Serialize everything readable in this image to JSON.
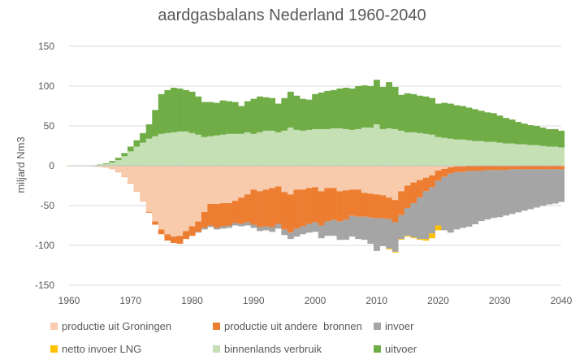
{
  "chart_data": {
    "type": "bar",
    "stacked": true,
    "title": "aardgasbalans Nederland 1960-2040",
    "xlabel": "",
    "ylabel": "miljard Nm3",
    "ylim": [
      -150,
      150
    ],
    "yticks": [
      150,
      100,
      50,
      0,
      -50,
      -100,
      -150
    ],
    "xlim": [
      1960,
      2040
    ],
    "xticks": [
      1960,
      1970,
      1980,
      1990,
      2000,
      2010,
      2020,
      2030,
      2040
    ],
    "legend_position": "bottom",
    "x": [
      1960,
      1961,
      1962,
      1963,
      1964,
      1965,
      1966,
      1967,
      1968,
      1969,
      1970,
      1971,
      1972,
      1973,
      1974,
      1975,
      1976,
      1977,
      1978,
      1979,
      1980,
      1981,
      1982,
      1983,
      1984,
      1985,
      1986,
      1987,
      1988,
      1989,
      1990,
      1991,
      1992,
      1993,
      1994,
      1995,
      1996,
      1997,
      1998,
      1999,
      2000,
      2001,
      2002,
      2003,
      2004,
      2005,
      2006,
      2007,
      2008,
      2009,
      2010,
      2011,
      2012,
      2013,
      2014,
      2015,
      2016,
      2017,
      2018,
      2019,
      2020,
      2021,
      2022,
      2023,
      2024,
      2025,
      2026,
      2027,
      2028,
      2029,
      2030,
      2031,
      2032,
      2033,
      2034,
      2035,
      2036,
      2037,
      2038,
      2039,
      2040
    ],
    "series": [
      {
        "name": "productie uit Groningen",
        "color": "#f8cbad",
        "stack": "neg",
        "values": [
          -0.3,
          -0.3,
          -0.3,
          -0.3,
          -0.5,
          -1,
          -2,
          -4,
          -8,
          -14,
          -22,
          -32,
          -44,
          -58,
          -70,
          -80,
          -86,
          -89,
          -88,
          -82,
          -76,
          -70,
          -58,
          -48,
          -48,
          -47,
          -47,
          -44,
          -40,
          -36,
          -30,
          -32,
          -30,
          -28,
          -26,
          -33,
          -36,
          -30,
          -30,
          -28,
          -27,
          -32,
          -28,
          -28,
          -32,
          -31,
          -30,
          -30,
          -34,
          -35,
          -36,
          -37,
          -40,
          -43,
          -32,
          -25,
          -21,
          -18,
          -15,
          -12,
          -6,
          -4,
          -2,
          -1,
          -1,
          -0.5,
          -0.5,
          -0.5,
          -0.5,
          -0.5,
          -0.5,
          -0.5,
          -0.5,
          -0.5,
          -0.5,
          -0.5,
          -0.5,
          -0.5,
          -0.5,
          -0.5,
          -0.5
        ]
      },
      {
        "name": "productie uit andere  bronnen",
        "color": "#ed7d31",
        "stack": "neg",
        "values": [
          -0.2,
          -0.2,
          -0.2,
          -0.2,
          -0.2,
          -0.2,
          -0.2,
          -0.3,
          -0.3,
          -0.3,
          -0.4,
          -0.4,
          -0.5,
          -1,
          -4,
          -6,
          -8,
          -8,
          -10,
          -10,
          -12,
          -13,
          -20,
          -27,
          -30,
          -29,
          -28,
          -28,
          -33,
          -35,
          -44,
          -45,
          -46,
          -49,
          -47,
          -47,
          -48,
          -49,
          -46,
          -45,
          -44,
          -43,
          -42,
          -40,
          -38,
          -37,
          -33,
          -34,
          -30,
          -30,
          -30,
          -29,
          -27,
          -28,
          -30,
          -28,
          -26,
          -22,
          -17,
          -15,
          -13,
          -10,
          -8,
          -7,
          -7,
          -6,
          -6,
          -6,
          -5,
          -5,
          -5,
          -5,
          -4,
          -4,
          -4,
          -4,
          -4,
          -4,
          -4,
          -4,
          -4
        ]
      },
      {
        "name": "invoer",
        "color": "#a5a5a5",
        "stack": "neg",
        "values": [
          0,
          0,
          0,
          0,
          0,
          0,
          0,
          0,
          0,
          0,
          0,
          0,
          0,
          0,
          0,
          0,
          0,
          0,
          0,
          0,
          0,
          -1,
          -2,
          -2,
          -2,
          -3,
          -3,
          -3,
          -3,
          -4,
          -4,
          -5,
          -5,
          -6,
          -6,
          -7,
          -8,
          -10,
          -10,
          -11,
          -12,
          -16,
          -18,
          -20,
          -23,
          -25,
          -26,
          -28,
          -29,
          -33,
          -41,
          -35,
          -37,
          -37,
          -30,
          -35,
          -43,
          -52,
          -60,
          -58,
          -56,
          -67,
          -74,
          -72,
          -70,
          -70,
          -67,
          -63,
          -62,
          -60,
          -59,
          -57,
          -56,
          -54,
          -52,
          -50,
          -48,
          -46,
          -44,
          -43,
          -41
        ]
      },
      {
        "name": "netto invoer LNG",
        "color": "#ffc000",
        "stack": "neg",
        "values": [
          0,
          0,
          0,
          0,
          0,
          0,
          0,
          0,
          0,
          0,
          0,
          0,
          0,
          0,
          0,
          0,
          0,
          0,
          0,
          0,
          0,
          0,
          0,
          0,
          0,
          0,
          0,
          0,
          0,
          0,
          0,
          0,
          0,
          0,
          0,
          0,
          0,
          0,
          0,
          0,
          0,
          0,
          0,
          0,
          0,
          0,
          0,
          0,
          0,
          0,
          0,
          0,
          -1,
          -1,
          -1,
          -1,
          -1,
          -1,
          -2,
          -6,
          -6,
          0,
          0,
          0,
          0,
          0,
          0,
          0,
          0,
          0,
          0,
          0,
          0,
          0,
          0,
          0,
          0,
          0,
          0,
          0,
          0
        ]
      },
      {
        "name": "binnenlands verbruik",
        "color": "#c5e0b4",
        "stack": "pos",
        "values": [
          0.5,
          0.5,
          0.5,
          0.5,
          0.5,
          1,
          2,
          4,
          7,
          12,
          18,
          24,
          29,
          34,
          37,
          40,
          41,
          42,
          43,
          43,
          41,
          39,
          36,
          37,
          38,
          39,
          40,
          40,
          40,
          42,
          40,
          42,
          44,
          44,
          42,
          44,
          48,
          45,
          44,
          45,
          46,
          46,
          46,
          47,
          47,
          46,
          45,
          46,
          48,
          48,
          52,
          46,
          47,
          46,
          44,
          42,
          42,
          41,
          40,
          39,
          36,
          35,
          34,
          33,
          33,
          32,
          31,
          31,
          30,
          30,
          29,
          28,
          28,
          27,
          27,
          26,
          26,
          25,
          24,
          24,
          23
        ]
      },
      {
        "name": "uitvoer",
        "color": "#70ad47",
        "stack": "pos",
        "values": [
          0,
          0,
          0,
          0,
          0,
          0.5,
          1,
          2,
          3,
          4,
          6,
          8,
          12,
          18,
          33,
          50,
          54,
          56,
          54,
          52,
          52,
          48,
          44,
          43,
          41,
          43,
          41,
          40,
          35,
          39,
          44,
          45,
          42,
          41,
          36,
          41,
          45,
          43,
          40,
          38,
          44,
          46,
          48,
          48,
          50,
          52,
          52,
          54,
          53,
          52,
          56,
          53,
          58,
          53,
          45,
          49,
          48,
          47,
          47,
          46,
          42,
          44,
          44,
          43,
          42,
          41,
          40,
          38,
          37,
          36,
          34,
          32,
          30,
          28,
          26,
          25,
          24,
          23,
          22,
          22,
          21
        ]
      }
    ]
  }
}
